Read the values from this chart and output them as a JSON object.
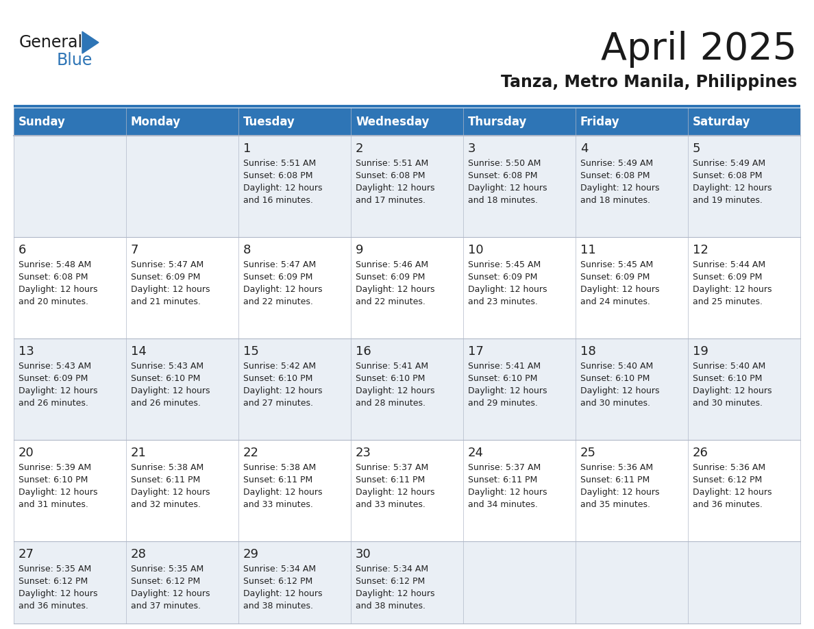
{
  "title": "April 2025",
  "subtitle": "Tanza, Metro Manila, Philippines",
  "header_bg_color": "#2E75B6",
  "header_text_color": "#FFFFFF",
  "week_row_colors": [
    "#EAEFF5",
    "#FFFFFF",
    "#EAEFF5",
    "#FFFFFF",
    "#EAEFF5"
  ],
  "border_color": "#2E75B6",
  "cell_separator_color": "#B0B8C8",
  "day_headers": [
    "Sunday",
    "Monday",
    "Tuesday",
    "Wednesday",
    "Thursday",
    "Friday",
    "Saturday"
  ],
  "title_color": "#1a1a1a",
  "subtitle_color": "#1a1a1a",
  "day_text_color": "#222222",
  "logo_general_color": "#1a1a1a",
  "logo_blue_color": "#2E75B6",
  "logo_triangle_color": "#2E75B6",
  "calendar": [
    [
      {
        "day": "",
        "sunrise": "",
        "sunset": "",
        "daylight": ""
      },
      {
        "day": "",
        "sunrise": "",
        "sunset": "",
        "daylight": ""
      },
      {
        "day": "1",
        "sunrise": "5:51 AM",
        "sunset": "6:08 PM",
        "daylight": "12 hours and 16 minutes."
      },
      {
        "day": "2",
        "sunrise": "5:51 AM",
        "sunset": "6:08 PM",
        "daylight": "12 hours and 17 minutes."
      },
      {
        "day": "3",
        "sunrise": "5:50 AM",
        "sunset": "6:08 PM",
        "daylight": "12 hours and 18 minutes."
      },
      {
        "day": "4",
        "sunrise": "5:49 AM",
        "sunset": "6:08 PM",
        "daylight": "12 hours and 18 minutes."
      },
      {
        "day": "5",
        "sunrise": "5:49 AM",
        "sunset": "6:08 PM",
        "daylight": "12 hours and 19 minutes."
      }
    ],
    [
      {
        "day": "6",
        "sunrise": "5:48 AM",
        "sunset": "6:08 PM",
        "daylight": "12 hours and 20 minutes."
      },
      {
        "day": "7",
        "sunrise": "5:47 AM",
        "sunset": "6:09 PM",
        "daylight": "12 hours and 21 minutes."
      },
      {
        "day": "8",
        "sunrise": "5:47 AM",
        "sunset": "6:09 PM",
        "daylight": "12 hours and 22 minutes."
      },
      {
        "day": "9",
        "sunrise": "5:46 AM",
        "sunset": "6:09 PM",
        "daylight": "12 hours and 22 minutes."
      },
      {
        "day": "10",
        "sunrise": "5:45 AM",
        "sunset": "6:09 PM",
        "daylight": "12 hours and 23 minutes."
      },
      {
        "day": "11",
        "sunrise": "5:45 AM",
        "sunset": "6:09 PM",
        "daylight": "12 hours and 24 minutes."
      },
      {
        "day": "12",
        "sunrise": "5:44 AM",
        "sunset": "6:09 PM",
        "daylight": "12 hours and 25 minutes."
      }
    ],
    [
      {
        "day": "13",
        "sunrise": "5:43 AM",
        "sunset": "6:09 PM",
        "daylight": "12 hours and 26 minutes."
      },
      {
        "day": "14",
        "sunrise": "5:43 AM",
        "sunset": "6:10 PM",
        "daylight": "12 hours and 26 minutes."
      },
      {
        "day": "15",
        "sunrise": "5:42 AM",
        "sunset": "6:10 PM",
        "daylight": "12 hours and 27 minutes."
      },
      {
        "day": "16",
        "sunrise": "5:41 AM",
        "sunset": "6:10 PM",
        "daylight": "12 hours and 28 minutes."
      },
      {
        "day": "17",
        "sunrise": "5:41 AM",
        "sunset": "6:10 PM",
        "daylight": "12 hours and 29 minutes."
      },
      {
        "day": "18",
        "sunrise": "5:40 AM",
        "sunset": "6:10 PM",
        "daylight": "12 hours and 30 minutes."
      },
      {
        "day": "19",
        "sunrise": "5:40 AM",
        "sunset": "6:10 PM",
        "daylight": "12 hours and 30 minutes."
      }
    ],
    [
      {
        "day": "20",
        "sunrise": "5:39 AM",
        "sunset": "6:10 PM",
        "daylight": "12 hours and 31 minutes."
      },
      {
        "day": "21",
        "sunrise": "5:38 AM",
        "sunset": "6:11 PM",
        "daylight": "12 hours and 32 minutes."
      },
      {
        "day": "22",
        "sunrise": "5:38 AM",
        "sunset": "6:11 PM",
        "daylight": "12 hours and 33 minutes."
      },
      {
        "day": "23",
        "sunrise": "5:37 AM",
        "sunset": "6:11 PM",
        "daylight": "12 hours and 33 minutes."
      },
      {
        "day": "24",
        "sunrise": "5:37 AM",
        "sunset": "6:11 PM",
        "daylight": "12 hours and 34 minutes."
      },
      {
        "day": "25",
        "sunrise": "5:36 AM",
        "sunset": "6:11 PM",
        "daylight": "12 hours and 35 minutes."
      },
      {
        "day": "26",
        "sunrise": "5:36 AM",
        "sunset": "6:12 PM",
        "daylight": "12 hours and 36 minutes."
      }
    ],
    [
      {
        "day": "27",
        "sunrise": "5:35 AM",
        "sunset": "6:12 PM",
        "daylight": "12 hours and 36 minutes."
      },
      {
        "day": "28",
        "sunrise": "5:35 AM",
        "sunset": "6:12 PM",
        "daylight": "12 hours and 37 minutes."
      },
      {
        "day": "29",
        "sunrise": "5:34 AM",
        "sunset": "6:12 PM",
        "daylight": "12 hours and 38 minutes."
      },
      {
        "day": "30",
        "sunrise": "5:34 AM",
        "sunset": "6:12 PM",
        "daylight": "12 hours and 38 minutes."
      },
      {
        "day": "",
        "sunrise": "",
        "sunset": "",
        "daylight": ""
      },
      {
        "day": "",
        "sunrise": "",
        "sunset": "",
        "daylight": ""
      },
      {
        "day": "",
        "sunrise": "",
        "sunset": "",
        "daylight": ""
      }
    ]
  ]
}
